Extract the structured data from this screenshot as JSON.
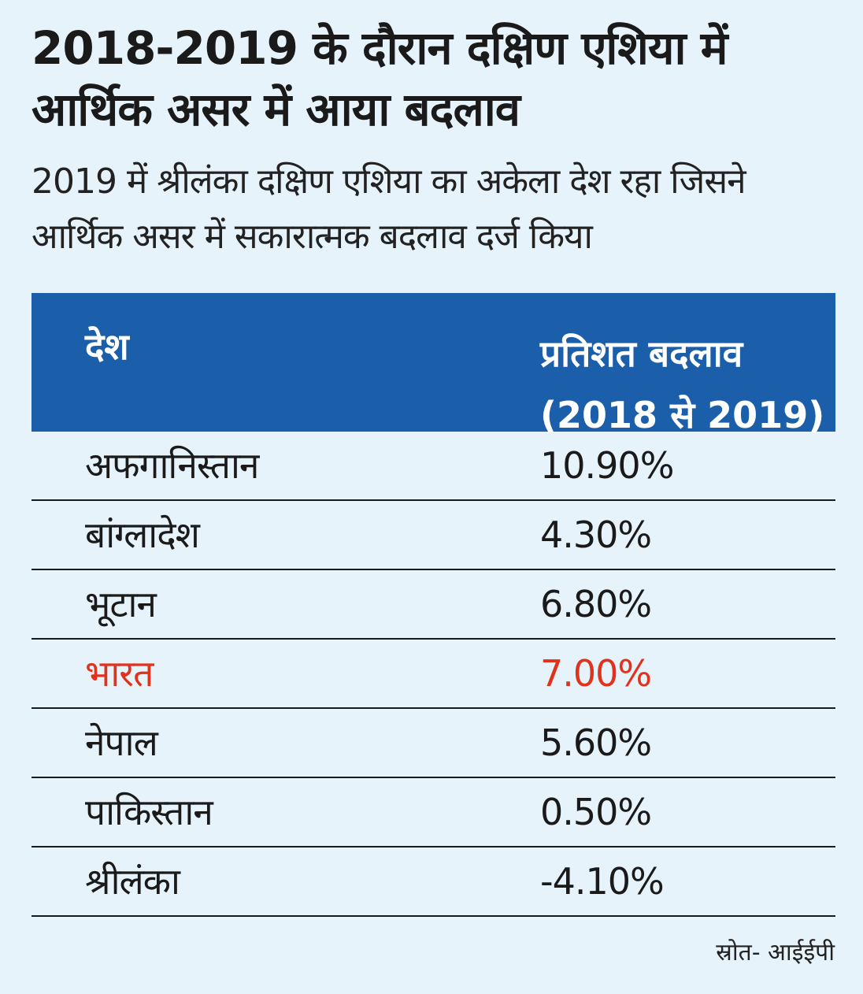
{
  "chart_data": {
    "type": "table",
    "title": "2018-2019 के दौरान दक्षिण एशिया में आर्थिक असर में आया बदलाव",
    "subtitle": "2019 में श्रीलंका दक्षिण एशिया का अकेला देश रहा जिसने आर्थिक असर में सकारात्मक बदलाव दर्ज किया",
    "columns": [
      "देश",
      "प्रतिशत बदलाव",
      "(2018 से 2019)"
    ],
    "rows": [
      {
        "country": "अफगानिस्तान",
        "value": "10.90%"
      },
      {
        "country": "बांग्लादेश",
        "value": "4.30%"
      },
      {
        "country": "भूटान",
        "value": "6.80%"
      },
      {
        "country": "भारत",
        "value": "7.00%"
      },
      {
        "country": "नेपाल",
        "value": "5.60%"
      },
      {
        "country": "पाकिस्तान",
        "value": "0.50%"
      },
      {
        "country": "श्रीलंका",
        "value": "-4.10%"
      }
    ],
    "values": [
      10.9,
      4.3,
      6.8,
      7.0,
      5.6,
      0.5,
      -4.1
    ],
    "highlighted_row": "भारत",
    "source": "स्रोत- आईईपी"
  },
  "colors": {
    "background": "#e6f3fb",
    "header": "#1b5faa",
    "highlight": "#e0321c",
    "text": "#1a1a1a"
  }
}
